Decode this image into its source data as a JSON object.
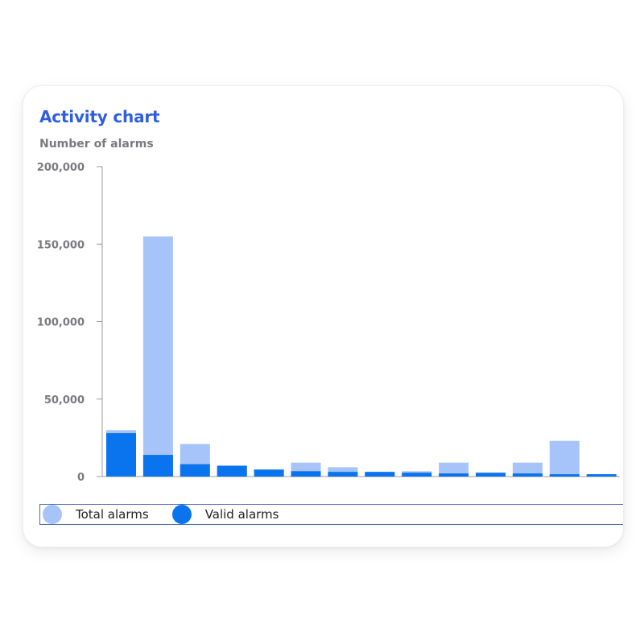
{
  "card": {
    "title": "Activity chart"
  },
  "chart_data": {
    "type": "bar",
    "stacked": "overlay",
    "title": "Activity chart",
    "ylabel": "Number of alarms",
    "xlabel": "",
    "ylim": [
      0,
      200000
    ],
    "yticks": [
      0,
      50000,
      100000,
      150000,
      200000
    ],
    "ytick_labels": [
      "0",
      "50,000",
      "100,000",
      "150,000",
      "200,000"
    ],
    "grid": false,
    "legend_position": "bottom",
    "categories": [
      "",
      "",
      "",
      "",
      "",
      "",
      "",
      "",
      "",
      "",
      "",
      "",
      "",
      ""
    ],
    "series": [
      {
        "name": "Total alarms",
        "color": "#a7c4fa",
        "values": [
          30000,
          155000,
          21000,
          7000,
          4500,
          9000,
          6000,
          3000,
          3500,
          9000,
          2500,
          9000,
          23000,
          1500
        ]
      },
      {
        "name": "Valid alarms",
        "color": "#0a73ee",
        "values": [
          28000,
          14000,
          8000,
          7000,
          4500,
          3500,
          3000,
          3000,
          2500,
          2000,
          2500,
          2000,
          1500,
          1500
        ]
      }
    ]
  }
}
